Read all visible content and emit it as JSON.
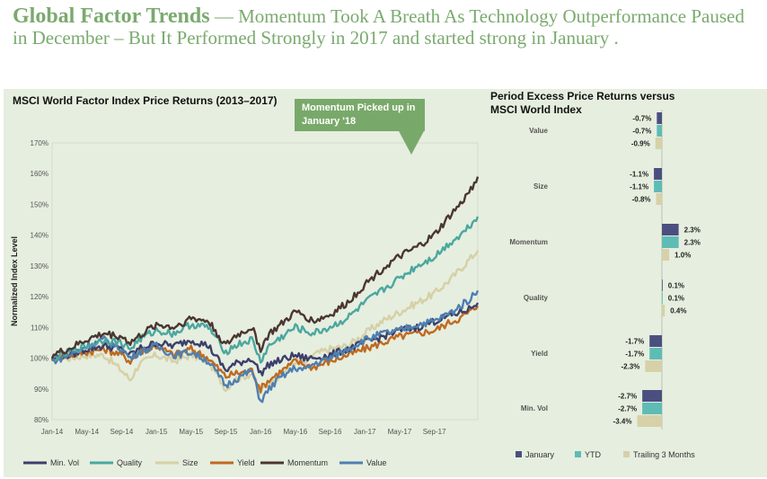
{
  "headline": {
    "bold": "Global Factor Trends",
    "rest": " — Momentum  Took A Breath As  Technology Outperformance Paused in December – But It Performed Strongly in 2017 and started strong in January ."
  },
  "callout": {
    "text": "Momentum Picked up in January '18"
  },
  "colors": {
    "panel": "#e6eedf",
    "minvol": "#3c3f6b",
    "quality": "#4aa7a0",
    "size": "#d6d0a6",
    "yield": "#c06a1f",
    "momentum": "#4a3632",
    "value": "#4e7fb0",
    "january": "#4b4f80",
    "ytd": "#5fbcb5",
    "trailing": "#d6d1a8"
  },
  "chart_data": [
    {
      "type": "line",
      "title": "MSCI World Factor Index Price Returns (2013–2017)",
      "ylabel": "Normalized Index Level",
      "xlabel": "",
      "ylim": [
        80,
        170
      ],
      "xlim": [
        0,
        49
      ],
      "yticks": [
        "80%",
        "90%",
        "100%",
        "110%",
        "120%",
        "130%",
        "140%",
        "150%",
        "160%",
        "170%"
      ],
      "ytick_values": [
        80,
        90,
        100,
        110,
        120,
        130,
        140,
        150,
        160,
        170
      ],
      "xtick_labels": [
        "Jan-14",
        "May-14",
        "Sep-14",
        "Jan-15",
        "May-15",
        "Sep-15",
        "Jan-16",
        "May-16",
        "Sep-16",
        "Jan-17",
        "May-17",
        "Sep-17"
      ],
      "xtick_values": [
        0,
        4,
        8,
        12,
        16,
        20,
        24,
        28,
        32,
        36,
        40,
        44
      ],
      "x": [
        0,
        2,
        4,
        6,
        8,
        9,
        10,
        12,
        14,
        16,
        18,
        20,
        21,
        23,
        24,
        25,
        26,
        28,
        29,
        30,
        32,
        34,
        36,
        38,
        40,
        42,
        44,
        46,
        47,
        48,
        49
      ],
      "series": [
        {
          "name": "Min. Vol",
          "key": "minvol",
          "values": [
            100,
            101,
            103,
            104,
            103,
            101,
            103,
            105,
            104,
            106,
            104,
            96,
            98,
            100,
            95,
            98,
            99,
            101,
            100,
            100,
            101,
            103,
            105,
            107,
            109,
            110,
            112,
            114,
            115,
            116,
            118
          ]
        },
        {
          "name": "Quality",
          "key": "quality",
          "values": [
            100,
            102,
            104,
            106,
            105,
            103,
            106,
            109,
            108,
            111,
            110,
            102,
            104,
            106,
            99,
            104,
            106,
            110,
            109,
            108,
            110,
            113,
            118,
            122,
            126,
            130,
            133,
            138,
            140,
            143,
            146
          ]
        },
        {
          "name": "Size",
          "key": "size",
          "values": [
            100,
            100,
            101,
            101,
            96,
            93,
            98,
            101,
            99,
            101,
            99,
            90,
            93,
            95,
            89,
            92,
            94,
            99,
            98,
            101,
            103,
            104,
            108,
            112,
            115,
            118,
            121,
            126,
            129,
            132,
            135
          ]
        },
        {
          "name": "Yield",
          "key": "yield",
          "values": [
            100,
            101,
            102,
            103,
            101,
            99,
            102,
            104,
            101,
            103,
            100,
            94,
            95,
            96,
            90,
            93,
            95,
            99,
            98,
            97,
            99,
            101,
            103,
            105,
            107,
            108,
            109,
            112,
            113,
            115,
            117
          ]
        },
        {
          "name": "Momentum",
          "key": "momentum",
          "values": [
            101,
            103,
            106,
            108,
            107,
            105,
            107,
            111,
            110,
            113,
            112,
            104,
            107,
            110,
            103,
            108,
            110,
            115,
            114,
            112,
            114,
            118,
            124,
            129,
            133,
            136,
            140,
            147,
            150,
            154,
            159
          ]
        },
        {
          "name": "Value",
          "key": "value",
          "values": [
            99,
            101,
            104,
            106,
            103,
            100,
            102,
            104,
            101,
            102,
            99,
            91,
            93,
            96,
            86,
            90,
            93,
            97,
            96,
            98,
            100,
            103,
            106,
            108,
            109,
            111,
            112,
            115,
            117,
            119,
            122
          ]
        }
      ],
      "legend": [
        "Min. Vol",
        "Quality",
        "Size",
        "Yield",
        "Momentum",
        "Value"
      ]
    },
    {
      "type": "bar",
      "orientation": "horizontal",
      "title": "Period Excess Price Returns versus MSCI World Index",
      "categories": [
        "Value",
        "Size",
        "Momentum",
        "Quality",
        "Yield",
        "Min. Vol"
      ],
      "series": [
        {
          "name": "January",
          "key": "january",
          "values": [
            -0.7,
            -1.1,
            2.3,
            0.1,
            -1.7,
            -2.7
          ]
        },
        {
          "name": "YTD",
          "key": "ytd",
          "values": [
            -0.7,
            -1.1,
            2.3,
            0.1,
            -1.7,
            -2.7
          ]
        },
        {
          "name": "Trailing 3 Months",
          "key": "trailing",
          "values": [
            -0.9,
            -0.8,
            1.0,
            0.4,
            -2.3,
            -3.4
          ]
        }
      ],
      "value_labels": [
        [
          "-0.7%",
          "-0.7%",
          "-0.9%"
        ],
        [
          "-1.1%",
          "-1.1%",
          "-0.8%"
        ],
        [
          "2.3%",
          "2.3%",
          "1.0%"
        ],
        [
          "0.1%",
          "0.1%",
          "0.4%"
        ],
        [
          "-1.7%",
          "-1.7%",
          "-2.3%"
        ],
        [
          "-2.7%",
          "-2.7%",
          "-3.4%"
        ]
      ],
      "legend": [
        "January",
        "YTD",
        "Trailing 3 Months"
      ]
    }
  ]
}
